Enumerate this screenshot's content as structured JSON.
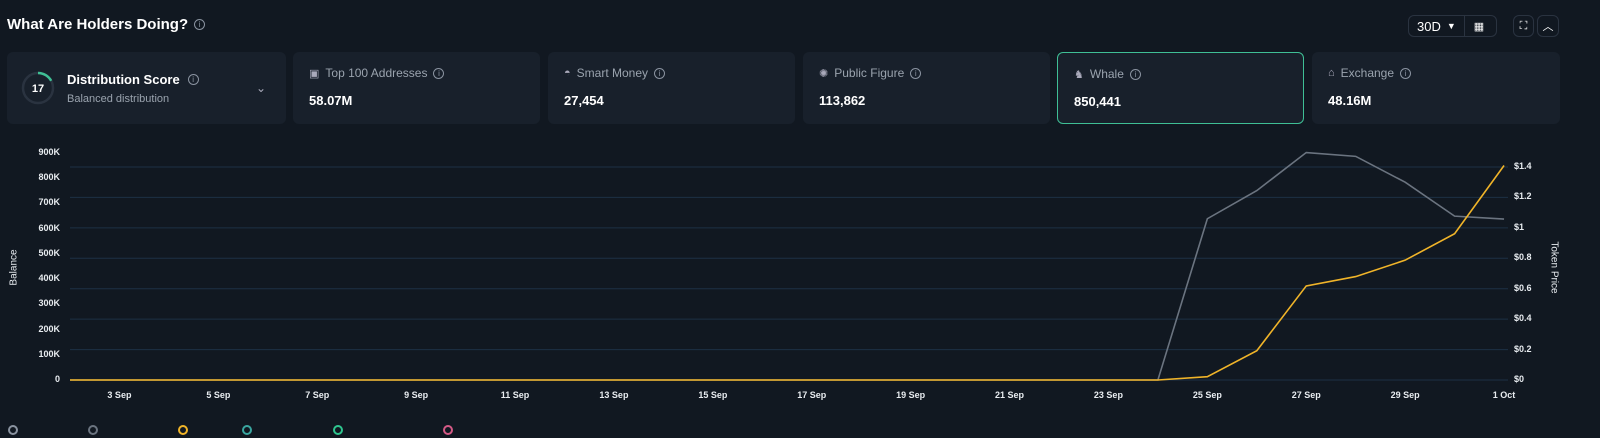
{
  "header": {
    "title": "What Are Holders Doing?",
    "range": "30D"
  },
  "score": {
    "value": "17",
    "title": "Distribution Score",
    "subtitle": "Balanced distribution",
    "fraction": 0.17
  },
  "cards": [
    {
      "label": "Top 100 Addresses",
      "value": "58.07M",
      "icon": "wallet-icon"
    },
    {
      "label": "Smart Money",
      "value": "27,454",
      "icon": "brain-icon"
    },
    {
      "label": "Public Figure",
      "value": "113,862",
      "icon": "star-badge-icon"
    },
    {
      "label": "Whale",
      "value": "850,441",
      "icon": "whale-icon",
      "selected": true
    },
    {
      "label": "Exchange",
      "value": "48.16M",
      "icon": "bank-icon"
    }
  ],
  "colors": {
    "accent": "#3fbf95",
    "balance": "#f0b429",
    "price": "#6b7480"
  },
  "legend_colors": [
    "#8a93a0",
    "#6b7480",
    "#f0b429",
    "#3aa6a0",
    "#2fc58f",
    "#d45a86"
  ],
  "chart_data": {
    "type": "line",
    "ylabel": "Balance",
    "y2label": "Token Price",
    "ylim": [
      0,
      900000
    ],
    "y2lim": [
      0,
      1.5
    ],
    "yticks": [
      "0",
      "100K",
      "200K",
      "300K",
      "400K",
      "500K",
      "600K",
      "700K",
      "800K",
      "900K"
    ],
    "y2ticks": [
      "$0",
      "$0.2",
      "$0.4",
      "$0.6",
      "$0.8",
      "$1",
      "$1.2",
      "$1.4"
    ],
    "xticks": [
      "3 Sep",
      "5 Sep",
      "7 Sep",
      "9 Sep",
      "11 Sep",
      "13 Sep",
      "15 Sep",
      "17 Sep",
      "19 Sep",
      "21 Sep",
      "23 Sep",
      "25 Sep",
      "27 Sep",
      "29 Sep",
      "1 Oct"
    ],
    "x": [
      "2 Sep",
      "3 Sep",
      "4 Sep",
      "5 Sep",
      "6 Sep",
      "7 Sep",
      "8 Sep",
      "9 Sep",
      "10 Sep",
      "11 Sep",
      "12 Sep",
      "13 Sep",
      "14 Sep",
      "15 Sep",
      "16 Sep",
      "17 Sep",
      "18 Sep",
      "19 Sep",
      "20 Sep",
      "21 Sep",
      "22 Sep",
      "23 Sep",
      "24 Sep",
      "25 Sep",
      "26 Sep",
      "27 Sep",
      "28 Sep",
      "29 Sep",
      "30 Sep",
      "1 Oct"
    ],
    "series": [
      {
        "axis": "left",
        "color": "#f0b429",
        "values": [
          0,
          0,
          0,
          0,
          0,
          0,
          0,
          0,
          0,
          0,
          0,
          0,
          0,
          0,
          0,
          0,
          0,
          0,
          0,
          0,
          0,
          0,
          0,
          13000,
          116000,
          373000,
          410000,
          475000,
          580000,
          850441
        ]
      },
      {
        "axis": "right",
        "color": "#6b7480",
        "values": [
          0,
          0,
          0,
          0,
          0,
          0,
          0,
          0,
          0,
          0,
          0,
          0,
          0,
          0,
          0,
          0,
          0,
          0,
          0,
          0,
          0,
          0,
          0,
          1.06,
          1.245,
          1.495,
          1.47,
          1.3,
          1.077,
          1.058
        ]
      }
    ],
    "grid": true
  }
}
